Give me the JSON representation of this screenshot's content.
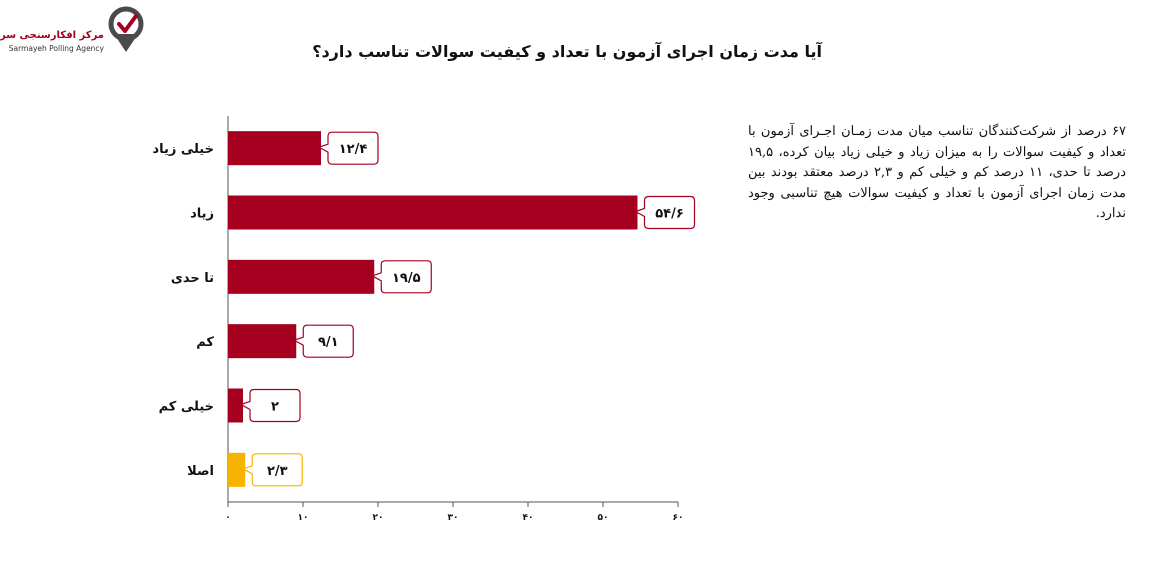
{
  "brand": {
    "name_fa": "مرکز افکارسنجی سرمایه",
    "name_en": "Sarmayeh Polling Agency"
  },
  "summary_text": "۶۷ درصد از شرکت‌کنندگان تناسب میان مدت زمـان اجـرای آزمون با تعداد و کیفیت سوالات را به میزان زیاد و خیلی زیاد بیان کرده، ۱۹,۵ درصد تا حدی، ۱۱ درصد کم و خیلی کم و ۲,۳ درصد معتقد بودند بین مدت زمان اجرای آزمون با تعداد و کیفیت سوالات هیچ تناسبی وجود ندارد.",
  "colors": {
    "primary": "#a5001f",
    "highlight": "#f6b400",
    "axis": "#555555"
  },
  "chart_data": {
    "type": "bar",
    "orientation": "horizontal",
    "title": "آیا مدت زمان اجرای آزمون با تعداد و کیفیت سوالات تناسب دارد؟",
    "categories": [
      "خیلی زیاد",
      "زیاد",
      "تا حدی",
      "کم",
      "خیلی کم",
      "اصلا"
    ],
    "values": [
      12.4,
      54.6,
      19.5,
      9.1,
      2,
      2.3
    ],
    "data_labels": [
      "۱۲/۴",
      "۵۴/۶",
      "۱۹/۵",
      "۹/۱",
      "۲",
      "۲/۳"
    ],
    "highlight_index": 5,
    "xlim": [
      0,
      60
    ],
    "xticks": [
      0,
      10,
      20,
      30,
      40,
      50,
      60
    ],
    "xtick_labels": [
      "۰",
      "۱۰",
      "۲۰",
      "۳۰",
      "۴۰",
      "۵۰",
      "۶۰"
    ],
    "xlabel": "",
    "ylabel": "",
    "grid": false,
    "legend": "none"
  }
}
